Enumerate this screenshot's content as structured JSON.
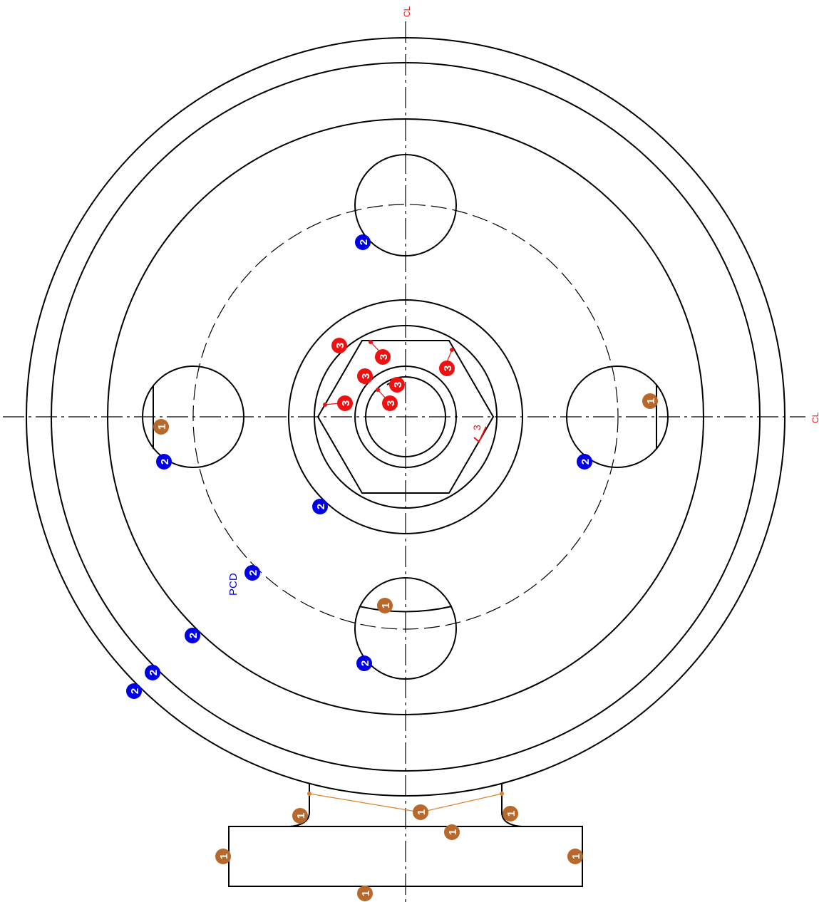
{
  "labels": {
    "centerline_top": "CL",
    "centerline_right": "CL",
    "pcd": "PCD",
    "roughness_value": "3"
  },
  "balloons": [
    {
      "number": "2",
      "color": "#0000e6"
    },
    {
      "number": "2",
      "color": "#0000e6"
    },
    {
      "number": "2",
      "color": "#0000e6"
    },
    {
      "number": "2",
      "color": "#0000e6"
    },
    {
      "number": "2",
      "color": "#0000e6"
    },
    {
      "number": "2",
      "color": "#0000e6"
    },
    {
      "number": "2",
      "color": "#0000e6"
    },
    {
      "number": "2",
      "color": "#0000e6"
    },
    {
      "number": "2",
      "color": "#0000e6"
    },
    {
      "number": "3",
      "color": "#ee1111"
    },
    {
      "number": "3",
      "color": "#ee1111"
    },
    {
      "number": "3",
      "color": "#ee1111"
    },
    {
      "number": "3",
      "color": "#ee1111"
    },
    {
      "number": "3",
      "color": "#ee1111"
    },
    {
      "number": "3",
      "color": "#ee1111"
    },
    {
      "number": "3",
      "color": "#ee1111"
    },
    {
      "number": "1",
      "color": "#b8682a"
    },
    {
      "number": "1",
      "color": "#b8682a"
    },
    {
      "number": "1",
      "color": "#b8682a"
    },
    {
      "number": "1",
      "color": "#b8682a"
    },
    {
      "number": "1",
      "color": "#b8682a"
    },
    {
      "number": "1",
      "color": "#b8682a"
    },
    {
      "number": "1",
      "color": "#b8682a"
    },
    {
      "number": "1",
      "color": "#b8682a"
    },
    {
      "number": "1",
      "color": "#b8682a"
    },
    {
      "number": "1",
      "color": "#b8682a"
    }
  ],
  "colors": {
    "outline": "#000000",
    "centerline_label": "#ee1111",
    "pcd_label": "#0000e6",
    "roughness": "#ee1111",
    "leader_brown": "#d9822b"
  }
}
